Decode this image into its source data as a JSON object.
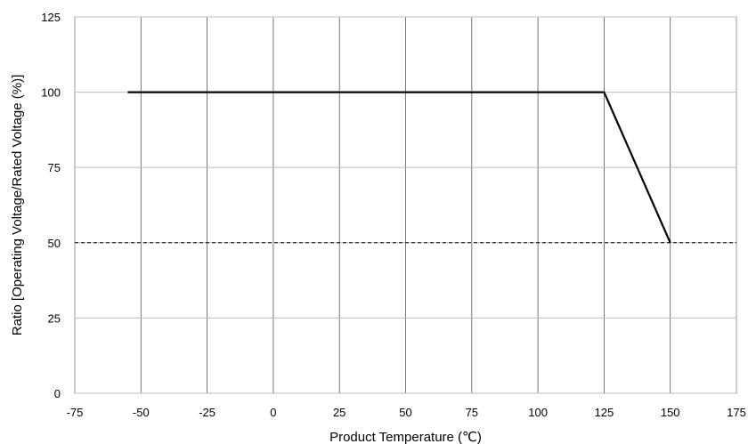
{
  "chart_data": {
    "type": "line",
    "title": "",
    "xlabel": "Product Temperature (℃)",
    "ylabel": "Ratio [Operating Voltage/Rated Voltage (%)]",
    "xlim": [
      -75,
      175
    ],
    "ylim": [
      0,
      125
    ],
    "xticks": [
      -75,
      -50,
      -25,
      0,
      25,
      50,
      75,
      100,
      125,
      150,
      175
    ],
    "yticks": [
      0,
      25,
      50,
      75,
      100,
      125
    ],
    "grid": true,
    "legend": "none",
    "series": [
      {
        "style": "solid",
        "color": "#000000",
        "x": [
          -55,
          125,
          150
        ],
        "y": [
          100,
          100,
          50
        ]
      }
    ],
    "reference_lines": [
      {
        "orientation": "horizontal",
        "style": "dashed",
        "y": 50,
        "x": [
          -75,
          175
        ]
      }
    ]
  }
}
